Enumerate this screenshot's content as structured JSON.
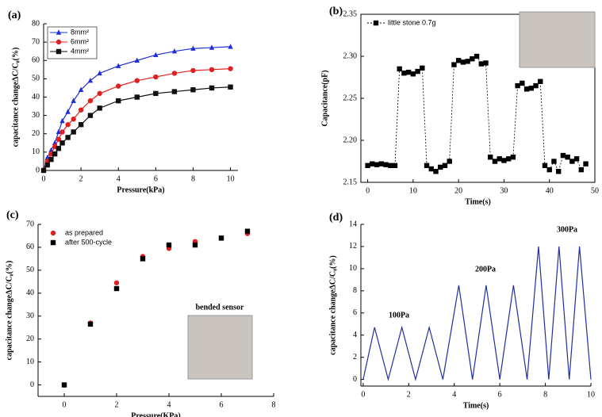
{
  "chart_data": [
    {
      "type": "line",
      "panel": "(a)",
      "xlabel": "Pressure(kPa)",
      "ylabel": "capacitance changeΔC/C₀(%)",
      "x": [
        0,
        0.2,
        0.4,
        0.6,
        0.8,
        1,
        1.3,
        1.6,
        2,
        2.5,
        3,
        4,
        5,
        6,
        7,
        8,
        9,
        10
      ],
      "series": [
        {
          "name": "8mm²",
          "color": "#1f2fd6",
          "marker": "triangle",
          "values": [
            0,
            7,
            11,
            15,
            21,
            27,
            32,
            38,
            44,
            49,
            53,
            57,
            60,
            63,
            65,
            66.5,
            67,
            67.5
          ]
        },
        {
          "name": "6mm²",
          "color": "#e02020",
          "marker": "circle",
          "values": [
            0,
            5,
            9,
            13,
            17,
            21,
            25,
            28,
            33,
            38,
            42,
            46,
            49,
            51,
            53,
            54.5,
            55,
            55.5
          ]
        },
        {
          "name": "4mm²",
          "color": "#111111",
          "marker": "square",
          "values": [
            0,
            3,
            6,
            9,
            12,
            15,
            18,
            21,
            25,
            30,
            34,
            38,
            40,
            42,
            43,
            44,
            45,
            45.5
          ]
        }
      ],
      "xlim": [
        0,
        10.4
      ],
      "ylim": [
        0,
        80
      ],
      "xticks": [
        0,
        2,
        4,
        6,
        8,
        10
      ],
      "yticks": [
        0,
        10,
        20,
        30,
        40,
        50,
        60,
        70,
        80
      ],
      "legend": "upper left"
    },
    {
      "type": "scatter",
      "panel": "(b)",
      "xlabel": "Time(s)",
      "ylabel": "Capacitance(pF)",
      "x": [
        0,
        1,
        2,
        3,
        4,
        5,
        6,
        7,
        8,
        9,
        10,
        11,
        12,
        13,
        14,
        15,
        16,
        17,
        18,
        19,
        20,
        21,
        22,
        23,
        24,
        25,
        26,
        27,
        28,
        29,
        30,
        31,
        32,
        33,
        34,
        35,
        36,
        37,
        38,
        39,
        40,
        41,
        42,
        43,
        44,
        45,
        46,
        47,
        48
      ],
      "series": [
        {
          "name": "little stone 0.7g",
          "color": "#000000",
          "marker": "square",
          "line_style": "dashed",
          "values": [
            2.17,
            2.172,
            2.171,
            2.172,
            2.171,
            2.17,
            2.17,
            2.285,
            2.28,
            2.281,
            2.279,
            2.282,
            2.286,
            2.17,
            2.166,
            2.163,
            2.168,
            2.17,
            2.175,
            2.29,
            2.295,
            2.293,
            2.294,
            2.297,
            2.3,
            2.291,
            2.292,
            2.18,
            2.175,
            2.178,
            2.176,
            2.178,
            2.18,
            2.265,
            2.268,
            2.261,
            2.262,
            2.265,
            2.27,
            2.17,
            2.165,
            2.175,
            2.163,
            2.182,
            2.18,
            2.175,
            2.178,
            2.165,
            2.172
          ]
        }
      ],
      "xlim": [
        -1.5,
        50
      ],
      "ylim": [
        2.15,
        2.35
      ],
      "xticks": [
        0,
        10,
        20,
        30,
        40,
        50
      ],
      "yticks": [
        2.15,
        {
          "value": 2.2,
          "label": "2.20"
        },
        2.25,
        {
          "value": 2.3,
          "label": "2.30"
        },
        2.35
      ],
      "legend": "upper left"
    },
    {
      "type": "scatter",
      "panel": "(c)",
      "xlabel": "Pressure(KPa)",
      "ylabel": "capacitance changeΔC/C₀(%)",
      "x": [
        0,
        1,
        2,
        3,
        4,
        5,
        6,
        7
      ],
      "series": [
        {
          "name": "as prepared",
          "color": "#e02020",
          "marker": "circle",
          "values": [
            0,
            27,
            44.5,
            56,
            59.5,
            62.5,
            64,
            66
          ]
        },
        {
          "name": "after 500-cycle",
          "color": "#000000",
          "marker": "square",
          "values": [
            0,
            26.5,
            42,
            55,
            61,
            61,
            64,
            67
          ]
        }
      ],
      "xlim": [
        -1,
        8
      ],
      "ylim": [
        -5,
        70
      ],
      "xticks": [
        0,
        2,
        4,
        6,
        8
      ],
      "yticks": [
        0,
        10,
        20,
        30,
        40,
        50,
        60,
        70
      ],
      "legend": "upper left",
      "annotations": [
        "bended sensor"
      ]
    },
    {
      "type": "line",
      "panel": "(d)",
      "xlabel": "Time(s)",
      "ylabel": "capacitance changeΔC/C₀(%)",
      "x": [
        0,
        0.5,
        1.1,
        1.7,
        2.3,
        2.9,
        3.5,
        4.2,
        4.8,
        5.4,
        6.0,
        6.6,
        7.2,
        7.7,
        8.15,
        8.6,
        9.05,
        9.5,
        10
      ],
      "series": [
        {
          "color": "#1f2f9e",
          "values": [
            0,
            4.7,
            0,
            4.7,
            0,
            4.7,
            0,
            8.5,
            0,
            8.5,
            0,
            8.5,
            0,
            12,
            0,
            12,
            0,
            12,
            0
          ]
        }
      ],
      "xlim": [
        -0.1,
        10
      ],
      "ylim": [
        -0.6,
        14
      ],
      "xticks": [
        0,
        2,
        4,
        6,
        8,
        10
      ],
      "yticks": [
        0,
        2,
        4,
        6,
        8,
        10,
        12,
        14
      ],
      "annotations": [
        "100Pa",
        "200Pa",
        "300Pa"
      ]
    }
  ]
}
